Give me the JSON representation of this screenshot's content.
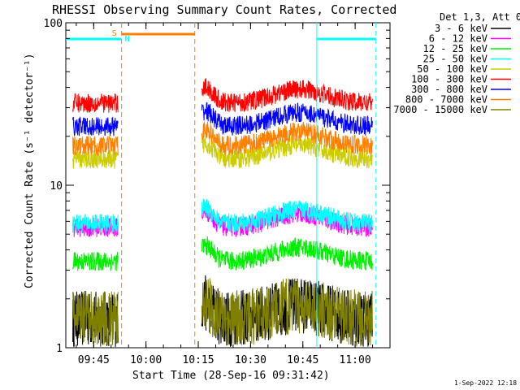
{
  "chart_data": {
    "type": "line",
    "title": "RHESSI Observing Summary Count Rates, Corrected",
    "xlabel": "Start Time (28-Sep-16 09:31:42)",
    "ylabel": "Corrected Count Rate (s⁻¹ detector⁻¹)",
    "y_scale": "log",
    "ylim": [
      1,
      100
    ],
    "xlim_minutes": [
      "09:37",
      "11:10"
    ],
    "x_ticks": [
      "09:45",
      "10:00",
      "10:15",
      "10:30",
      "10:45",
      "11:00"
    ],
    "y_ticks": [
      "1",
      "10",
      "100"
    ],
    "legend_header": "Det 1,3, Att 0",
    "legend_position": "top-right",
    "footer_date": "1-Sep-2022 12:18",
    "series": [
      {
        "name": "3 - 6 keV",
        "color": "#000000",
        "data_gaps": [
          "09:54-10:15"
        ],
        "level": 1.5,
        "noise": "high"
      },
      {
        "name": "6 - 12 keV",
        "color": "#ff00ff",
        "level": 5.5
      },
      {
        "name": "12 - 25 keV",
        "color": "#00ee00",
        "level": 3.4
      },
      {
        "name": "25 - 50 keV",
        "color": "#00ffff",
        "level": 5.8
      },
      {
        "name": "50 - 100 keV",
        "color": "#cccc00",
        "level": 14.5
      },
      {
        "name": "100 - 300 keV",
        "color": "#ff0000",
        "level": 32
      },
      {
        "name": "300 - 800 keV",
        "color": "#0000ff",
        "level": 23
      },
      {
        "name": "800 - 7000 keV",
        "color": "#ff8000",
        "level": 17.5
      },
      {
        "name": "7000 - 15000 keV",
        "color": "#808000",
        "level": 1.5,
        "noise": "high"
      }
    ],
    "annotations": [
      {
        "label": "S",
        "color": "#ff8000",
        "meaning": "SAA",
        "time": "09:53"
      },
      {
        "label": "N",
        "color": "#00ffff",
        "meaning": "Night",
        "time": "09:53"
      }
    ]
  }
}
